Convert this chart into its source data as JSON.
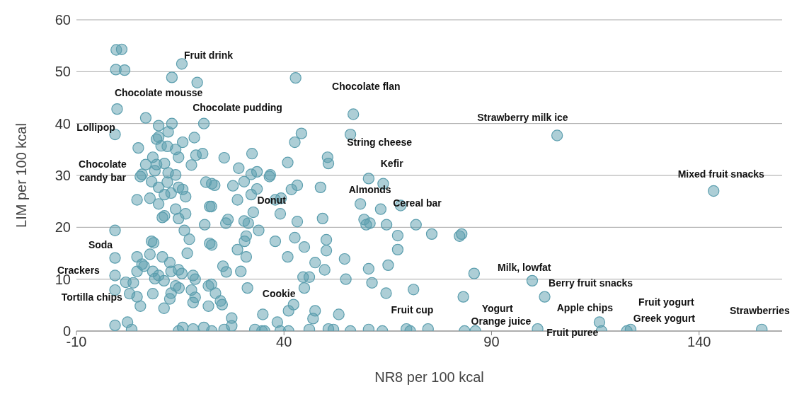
{
  "chart_data": {
    "type": "scatter",
    "xlabel": "NR8 per 100 kcal",
    "ylabel": "LIM per 100 kcal",
    "xlim": [
      -10,
      160
    ],
    "xticks": [
      -10,
      40,
      90,
      140
    ],
    "ylim": [
      0,
      60
    ],
    "yticks": [
      0,
      10,
      20,
      30,
      40,
      50,
      60
    ],
    "grid": "y",
    "marker": "circle",
    "series": [
      {
        "color": "#5b9eae",
        "x": [
          -0.4,
          0.9,
          -0.5,
          1.6,
          15.4,
          13.0,
          19.1,
          -0.2,
          6.7,
          9.8,
          13.0,
          20.7,
          -0.7,
          12.1,
          9.8,
          9.3,
          15.6,
          18.4,
          4.9,
          10.4,
          11.9,
          13.9,
          18.8,
          20.4,
          14.6,
          8.4,
          9.3,
          11.2,
          17.7,
          6.7,
          8.9,
          5.8,
          12.1,
          13.9,
          5.4,
          8.1,
          9.8,
          11.9,
          12.8,
          14.6,
          15.6,
          16.3,
          11.2,
          4.6,
          7.7,
          9.8,
          13.9,
          16.3,
          10.7,
          11.2,
          14.6,
          21.2,
          22.6,
          22.1,
          20.9,
          -0.7,
          16.0,
          17.2,
          8.1,
          8.6,
          22.1,
          16.7,
          -0.7,
          4.6,
          7.7,
          10.7,
          5.8,
          6.3,
          12.5,
          4.6,
          8.4,
          9.8,
          12.8,
          14.6,
          15.4,
          18.1,
          -0.7,
          1.9,
          3.7,
          8.9,
          11.1,
          13.9,
          18.6,
          21.8,
          -0.7,
          2.8,
          4.6,
          8.4,
          12.8,
          14.7,
          17.7,
          18.6,
          12.5,
          5.4,
          11.1,
          18.1,
          21.8,
          -0.7,
          2.3,
          3.3,
          15.6,
          18.1,
          20.7,
          22.6,
          14.6,
          42.8,
          56.7,
          56.0,
          44.2,
          42.6,
          25.6,
          32.3,
          29.1,
          40.9,
          50.5,
          50.7,
          33.5,
          36.7,
          60.4,
          32.1,
          23.3,
          27.7,
          30.4,
          33.5,
          36.5,
          41.8,
          43.2,
          48.8,
          28.8,
          32.1,
          37.9,
          39.3,
          22.5,
          58.4,
          26.5,
          26.0,
          30.4,
          31.4,
          32.6,
          39.1,
          43.2,
          49.3,
          59.3,
          59.8,
          33.9,
          30.9,
          30.5,
          37.9,
          42.6,
          50.2,
          22.6,
          28.8,
          44.9,
          50.2,
          30.9,
          40.9,
          47.5,
          54.6,
          25.3,
          26.1,
          29.6,
          49.8,
          60.4,
          44.6,
          46.1,
          54.9,
          61.2,
          22.5,
          23.5,
          31.2,
          44.9,
          24.7,
          25.1,
          42.3,
          41.1,
          47.5,
          53.2,
          27.4,
          34.9,
          47.0,
          38.4,
          25.6,
          27.4,
          33.0,
          34.7,
          35.3,
          39.1,
          41.1,
          46.1,
          50.7,
          51.9,
          56.0,
          60.4,
          63.9,
          63.3,
          68.1,
          60.7,
          64.7,
          71.8,
          67.4,
          75.6,
          82.3,
          82.8,
          67.4,
          65.1,
          85.8,
          99.8,
          64.6,
          71.2,
          83.2,
          102.8,
          63.7,
          69.5,
          70.4,
          74.7,
          83.5,
          86.1,
          101.1,
          116.0,
          116.5,
          105.8,
          143.5,
          122.6,
          123.5,
          155.1
        ],
        "values": [
          54.2,
          54.3,
          50.4,
          50.3,
          51.5,
          48.9,
          47.9,
          42.8,
          41.1,
          39.6,
          40.0,
          40.0,
          37.9,
          38.4,
          37.4,
          37.0,
          36.4,
          37.3,
          35.3,
          35.7,
          35.6,
          35.0,
          33.9,
          34.2,
          33.5,
          33.5,
          32.1,
          32.3,
          32.0,
          32.1,
          30.9,
          30.2,
          30.5,
          30.1,
          29.8,
          28.8,
          27.7,
          28.7,
          26.6,
          27.7,
          27.3,
          25.9,
          26.3,
          25.3,
          25.6,
          24.5,
          23.5,
          22.6,
          21.9,
          22.2,
          21.7,
          28.7,
          28.4,
          24.0,
          20.5,
          19.4,
          19.4,
          17.7,
          17.3,
          17.0,
          16.9,
          15.0,
          14.1,
          14.3,
          14.8,
          14.3,
          12.9,
          12.5,
          13.2,
          11.5,
          11.5,
          10.7,
          11.5,
          11.8,
          11.1,
          10.7,
          10.7,
          9.4,
          9.3,
          10.1,
          9.7,
          8.7,
          10.0,
          8.7,
          7.9,
          7.2,
          6.6,
          7.2,
          7.3,
          8.3,
          7.9,
          6.5,
          6.2,
          4.8,
          4.4,
          5.5,
          4.8,
          1.1,
          1.7,
          0.3,
          0.7,
          0.4,
          0.7,
          0,
          0,
          48.8,
          41.8,
          37.9,
          38.1,
          36.4,
          33.4,
          34.2,
          31.4,
          32.5,
          33.5,
          32.3,
          30.7,
          30.1,
          29.4,
          30.2,
          28.1,
          28.0,
          28.8,
          27.4,
          29.8,
          27.3,
          28.1,
          27.7,
          25.3,
          26.3,
          25.3,
          25.6,
          24.0,
          24.5,
          21.5,
          20.8,
          21.2,
          20.8,
          22.9,
          22.6,
          21.1,
          21.7,
          21.5,
          20.5,
          19.4,
          18.3,
          17.3,
          17.3,
          18.0,
          17.6,
          16.6,
          15.7,
          16.2,
          15.5,
          14.3,
          14.3,
          13.2,
          13.9,
          12.5,
          11.4,
          11.5,
          11.8,
          12.0,
          10.4,
          10.4,
          10.0,
          9.3,
          9.0,
          7.3,
          8.3,
          8.3,
          5.8,
          5.1,
          5.1,
          3.9,
          3.9,
          3.2,
          2.5,
          3.2,
          2.4,
          1.7,
          0.3,
          1.0,
          0.3,
          0,
          0,
          0,
          0,
          0.3,
          0.4,
          0.3,
          0,
          0.3,
          28.4,
          23.5,
          24.2,
          20.8,
          20.5,
          20.5,
          18.4,
          18.7,
          18.3,
          18.7,
          15.7,
          12.7,
          11.1,
          9.7,
          7.3,
          8.0,
          6.6,
          6.6,
          0,
          0.4,
          0,
          0.4,
          0,
          0,
          0.4,
          1.7,
          0,
          37.7,
          27.0,
          0,
          0.3,
          0.3
        ]
      }
    ],
    "annotations": [
      "Fruit drink",
      "Chocolate mousse",
      "Chocolate pudding",
      "Lollipop",
      "Chocolate candy bar",
      "Soda",
      "Crackers",
      "Tortilla chips",
      "Donut",
      "Cookie",
      "Chocolate flan",
      "String cheese",
      "Kefir",
      "Almonds",
      "Cereal bar",
      "Strawberry milk ice",
      "Mixed fruit snacks",
      "Milk, lowfat",
      "Berry fruit snacks",
      "Fruit cup",
      "Yogurt",
      "Orange juice",
      "Apple chips",
      "Fruit puree",
      "Fruit yogurt",
      "Greek yogurt",
      "Strawberries"
    ]
  }
}
